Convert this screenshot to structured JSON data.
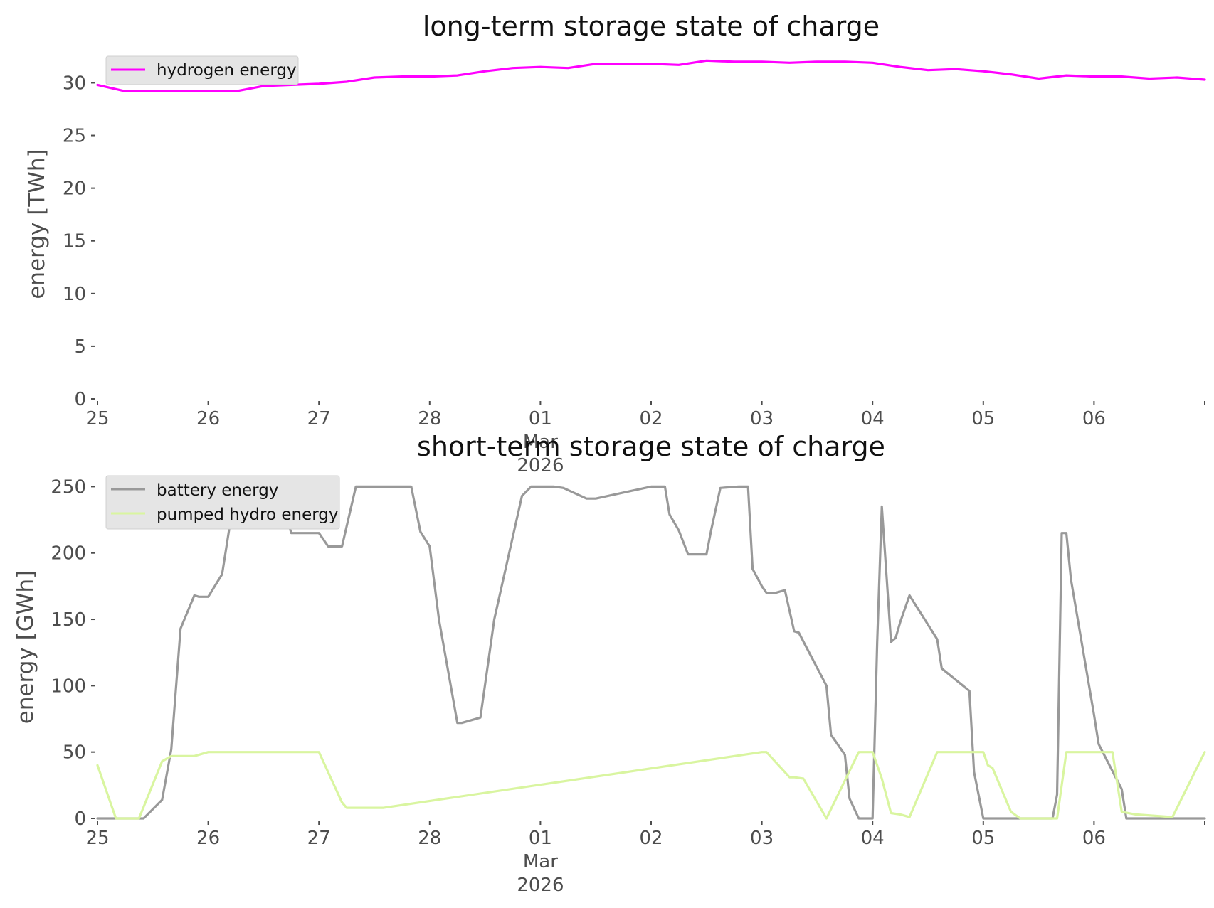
{
  "chart_data": [
    {
      "type": "line",
      "title": "long-term storage state of charge",
      "xlabel": "",
      "ylabel": "energy [TWh]",
      "ylim": [
        0,
        33
      ],
      "yticks": [
        0,
        5,
        10,
        15,
        20,
        25,
        30
      ],
      "x_range_days": [
        "2026-02-25",
        "2026-03-07"
      ],
      "xtick_labels": [
        "25",
        "26",
        "27",
        "28",
        "01\nMar\n2026",
        "02",
        "03",
        "04",
        "05",
        "06"
      ],
      "grid": false,
      "legend_placement": "top-left",
      "series": [
        {
          "name": "hydrogen energy",
          "color": "#ff00ff",
          "x": [
            "2026-02-25 00:00",
            "2026-02-25 06:00",
            "2026-02-25 12:00",
            "2026-02-25 18:00",
            "2026-02-26 00:00",
            "2026-02-26 06:00",
            "2026-02-26 12:00",
            "2026-02-26 18:00",
            "2026-02-27 00:00",
            "2026-02-27 06:00",
            "2026-02-27 12:00",
            "2026-02-27 18:00",
            "2026-02-28 00:00",
            "2026-02-28 06:00",
            "2026-02-28 12:00",
            "2026-02-28 18:00",
            "2026-03-01 00:00",
            "2026-03-01 06:00",
            "2026-03-01 12:00",
            "2026-03-01 18:00",
            "2026-03-02 00:00",
            "2026-03-02 06:00",
            "2026-03-02 12:00",
            "2026-03-02 18:00",
            "2026-03-03 00:00",
            "2026-03-03 06:00",
            "2026-03-03 12:00",
            "2026-03-03 18:00",
            "2026-03-04 00:00",
            "2026-03-04 06:00",
            "2026-03-04 12:00",
            "2026-03-04 18:00",
            "2026-03-05 00:00",
            "2026-03-05 06:00",
            "2026-03-05 12:00",
            "2026-03-05 18:00",
            "2026-03-06 00:00",
            "2026-03-06 06:00",
            "2026-03-06 12:00",
            "2026-03-06 18:00",
            "2026-03-07 00:00"
          ],
          "y": [
            29.8,
            29.2,
            29.2,
            29.2,
            29.2,
            29.2,
            29.7,
            29.8,
            29.9,
            30.1,
            30.5,
            30.6,
            30.6,
            30.7,
            31.1,
            31.4,
            31.5,
            31.4,
            31.8,
            31.8,
            31.8,
            31.7,
            32.1,
            32.0,
            32.0,
            31.9,
            32.0,
            32.0,
            31.9,
            31.5,
            31.2,
            31.3,
            31.1,
            30.8,
            30.4,
            30.7,
            30.6,
            30.6,
            30.4,
            30.5,
            30.3
          ]
        }
      ]
    },
    {
      "type": "line",
      "title": "short-term storage state of charge",
      "xlabel": "",
      "ylabel": "energy [GWh]",
      "ylim": [
        0,
        262
      ],
      "yticks": [
        0,
        50,
        100,
        150,
        200,
        250
      ],
      "x_range_days": [
        "2026-02-25",
        "2026-03-07"
      ],
      "xtick_labels": [
        "25",
        "26",
        "27",
        "28",
        "01\nMar\n2026",
        "02",
        "03",
        "04",
        "05",
        "06"
      ],
      "grid": false,
      "legend_placement": "top-left",
      "series": [
        {
          "name": "battery energy",
          "color": "#999999",
          "x": [
            "2026-02-25 00:00",
            "2026-02-25 09:00",
            "2026-02-25 10:00",
            "2026-02-25 14:00",
            "2026-02-25 16:00",
            "2026-02-25 18:00",
            "2026-02-25 21:00",
            "2026-02-25 22:00",
            "2026-02-26 00:00",
            "2026-02-26 03:00",
            "2026-02-26 06:00",
            "2026-02-26 12:00",
            "2026-02-26 15:00",
            "2026-02-26 18:00",
            "2026-02-27 00:00",
            "2026-02-27 02:00",
            "2026-02-27 03:00",
            "2026-02-27 05:00",
            "2026-02-27 08:00",
            "2026-02-27 11:00",
            "2026-02-27 13:00",
            "2026-02-27 20:00",
            "2026-02-27 22:00",
            "2026-02-28 00:00",
            "2026-02-28 02:00",
            "2026-02-28 06:00",
            "2026-02-28 07:00",
            "2026-02-28 11:00",
            "2026-02-28 14:00",
            "2026-02-28 20:00",
            "2026-02-28 22:00",
            "2026-03-01 00:00",
            "2026-03-01 03:00",
            "2026-03-01 05:00",
            "2026-03-01 10:00",
            "2026-03-01 12:00",
            "2026-03-02 00:00",
            "2026-03-02 03:00",
            "2026-03-02 04:00",
            "2026-03-02 06:00",
            "2026-03-02 08:00",
            "2026-03-02 12:00",
            "2026-03-02 13:00",
            "2026-03-02 15:00",
            "2026-03-02 19:00",
            "2026-03-02 21:00",
            "2026-03-02 22:00",
            "2026-03-03 00:00",
            "2026-03-03 01:00",
            "2026-03-03 03:00",
            "2026-03-03 05:00",
            "2026-03-03 07:00",
            "2026-03-03 08:00",
            "2026-03-03 14:00",
            "2026-03-03 15:00",
            "2026-03-03 18:00",
            "2026-03-03 19:00",
            "2026-03-03 21:00",
            "2026-03-04 00:00",
            "2026-03-04 01:00",
            "2026-03-04 02:00",
            "2026-03-04 04:00",
            "2026-03-04 05:00",
            "2026-03-04 06:00",
            "2026-03-04 08:00",
            "2026-03-04 14:00",
            "2026-03-04 15:00",
            "2026-03-04 21:00",
            "2026-03-04 22:00",
            "2026-03-05 00:00",
            "2026-03-05 07:00",
            "2026-03-05 15:00",
            "2026-03-05 16:00",
            "2026-03-05 17:00",
            "2026-03-05 18:00",
            "2026-03-05 19:00",
            "2026-03-06 00:00",
            "2026-03-06 01:00",
            "2026-03-06 06:00",
            "2026-03-06 07:00",
            "2026-03-06 15:00",
            "2026-03-06 16:00",
            "2026-03-07 00:00"
          ],
          "y": [
            0,
            0,
            0,
            14,
            52,
            143,
            168,
            167,
            167,
            184,
            250,
            250,
            250,
            215,
            215,
            205,
            205,
            205,
            250,
            250,
            250,
            250,
            216,
            205,
            150,
            72,
            72,
            76,
            150,
            243,
            250,
            250,
            250,
            249,
            241,
            241,
            250,
            250,
            229,
            217,
            199,
            199,
            217,
            249,
            250,
            250,
            188,
            175,
            170,
            170,
            172,
            141,
            140,
            100,
            63,
            48,
            15,
            0,
            0,
            133,
            235,
            133,
            136,
            148,
            168,
            135,
            113,
            96,
            35,
            0,
            0,
            0,
            18,
            215,
            215,
            180,
            78,
            56,
            22,
            0,
            0,
            0,
            0
          ]
        },
        {
          "name": "pumped hydro energy",
          "color": "#d9f5a0",
          "x": [
            "2026-02-25 00:00",
            "2026-02-25 04:00",
            "2026-02-25 06:00",
            "2026-02-25 09:00",
            "2026-02-25 14:00",
            "2026-02-25 16:00",
            "2026-02-25 20:00",
            "2026-02-25 21:00",
            "2026-02-26 00:00",
            "2026-02-26 06:00",
            "2026-02-27 00:00",
            "2026-02-27 05:00",
            "2026-02-27 06:00",
            "2026-02-27 09:00",
            "2026-02-27 14:00",
            "2026-03-03 00:00",
            "2026-03-03 01:00",
            "2026-03-03 06:00",
            "2026-03-03 07:00",
            "2026-03-03 09:00",
            "2026-03-03 14:00",
            "2026-03-03 21:00",
            "2026-03-04 00:00",
            "2026-03-04 02:00",
            "2026-03-04 04:00",
            "2026-03-04 06:00",
            "2026-03-04 08:00",
            "2026-03-04 14:00",
            "2026-03-04 15:00",
            "2026-03-04 20:00",
            "2026-03-04 22:00",
            "2026-03-05 00:00",
            "2026-03-05 01:00",
            "2026-03-05 02:00",
            "2026-03-05 06:00",
            "2026-03-05 08:00",
            "2026-03-05 16:00",
            "2026-03-05 18:00",
            "2026-03-05 20:00",
            "2026-03-06 00:00",
            "2026-03-06 04:00",
            "2026-03-06 06:00",
            "2026-03-06 09:00",
            "2026-03-06 17:00",
            "2026-03-07 00:00"
          ],
          "y": [
            40,
            0,
            0,
            0,
            43,
            47,
            47,
            47,
            50,
            50,
            50,
            12,
            8,
            8,
            8,
            50,
            50,
            31,
            31,
            30,
            0,
            50,
            50,
            30,
            4,
            3,
            1,
            50,
            50,
            50,
            50,
            50,
            40,
            38,
            5,
            0,
            0,
            50,
            50,
            50,
            50,
            5,
            3,
            1,
            50
          ]
        }
      ]
    }
  ]
}
